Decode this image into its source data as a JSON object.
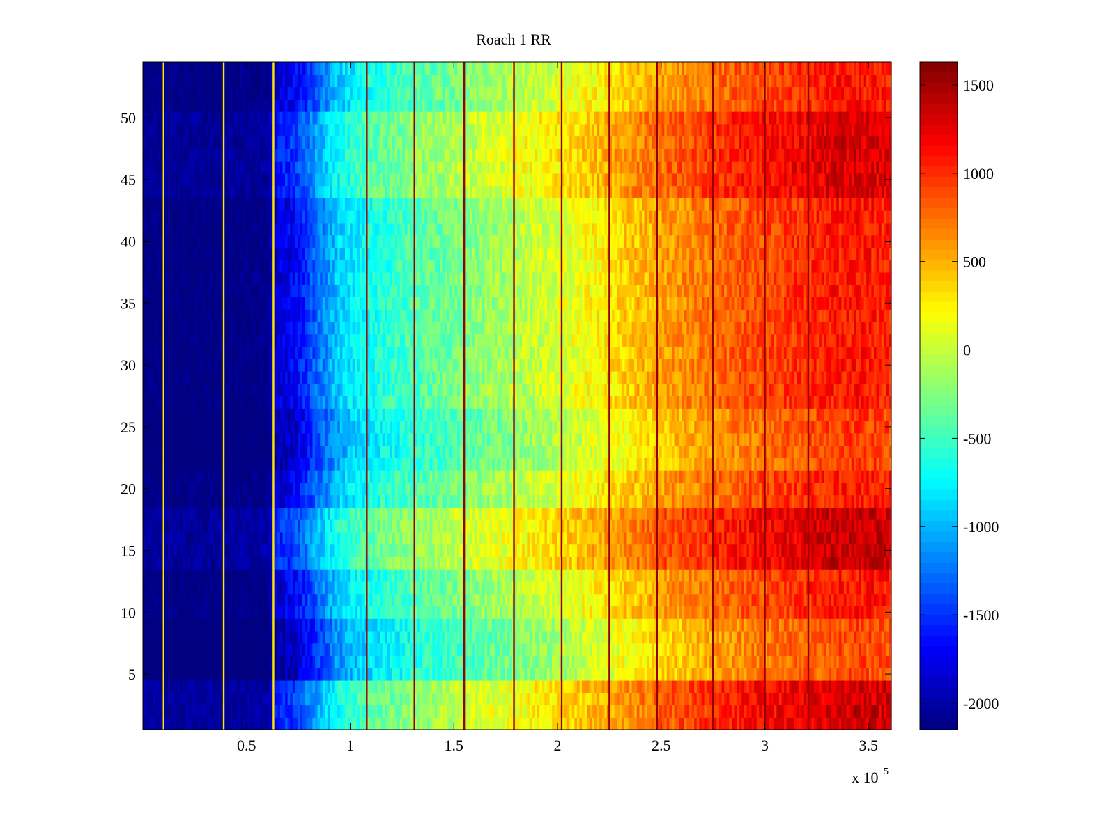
{
  "chart_data": {
    "type": "heatmap",
    "title": "Roach 1 RR",
    "xlabel": "",
    "ylabel": "",
    "x_exponent_label": "x 10",
    "x_exponent_power": "5",
    "xlim": [
      0,
      361000
    ],
    "ylim": [
      0.5,
      54.5
    ],
    "x_tick_values": [
      50000,
      100000,
      150000,
      200000,
      250000,
      300000,
      350000
    ],
    "x_tick_labels": [
      "0.5",
      "1",
      "1.5",
      "2",
      "2.5",
      "3",
      "3.5"
    ],
    "y_tick_values": [
      5,
      10,
      15,
      20,
      25,
      30,
      35,
      40,
      45,
      50
    ],
    "y_tick_labels": [
      "5",
      "10",
      "15",
      "20",
      "25",
      "30",
      "35",
      "40",
      "45",
      "50"
    ],
    "colorbar": {
      "colormap": "jet",
      "clim": [
        -2150,
        1630
      ],
      "tick_values": [
        1500,
        1000,
        500,
        0,
        -500,
        -1000,
        -1500,
        -2000
      ],
      "tick_labels": [
        "1500",
        "1000",
        "500",
        "0",
        "-500",
        "-1000",
        "-1500",
        "-2000"
      ]
    },
    "rows": 54,
    "profile": {
      "x": [
        0,
        20000,
        40000,
        60000,
        65000,
        75000,
        85000,
        95000,
        110000,
        130000,
        150000,
        170000,
        190000,
        210000,
        230000,
        250000,
        270000,
        290000,
        310000,
        330000,
        345000,
        361000
      ],
      "value": [
        -2150,
        -2150,
        -2150,
        -2120,
        -1850,
        -1650,
        -1250,
        -900,
        -650,
        -450,
        -300,
        -150,
        0,
        150,
        350,
        550,
        700,
        850,
        950,
        1050,
        1100,
        1050
      ]
    },
    "row_offsets": [
      {
        "rows": [
          1,
          4
        ],
        "offset": 250
      },
      {
        "rows": [
          5,
          9
        ],
        "offset": -200
      },
      {
        "rows": [
          14,
          18
        ],
        "offset": 280
      },
      {
        "rows": [
          22,
          26
        ],
        "offset": -150
      },
      {
        "rows": [
          44,
          50
        ],
        "offset": 220
      }
    ],
    "vertical_lines": {
      "dark_x": [
        108000,
        131000,
        155000,
        179000,
        202000,
        225000,
        248000,
        275000,
        300000,
        321000
      ],
      "dark_value": 1550,
      "bright_x": [
        10000,
        39000,
        63000
      ],
      "bright_value": 300
    },
    "noise_amplitude": 200
  }
}
